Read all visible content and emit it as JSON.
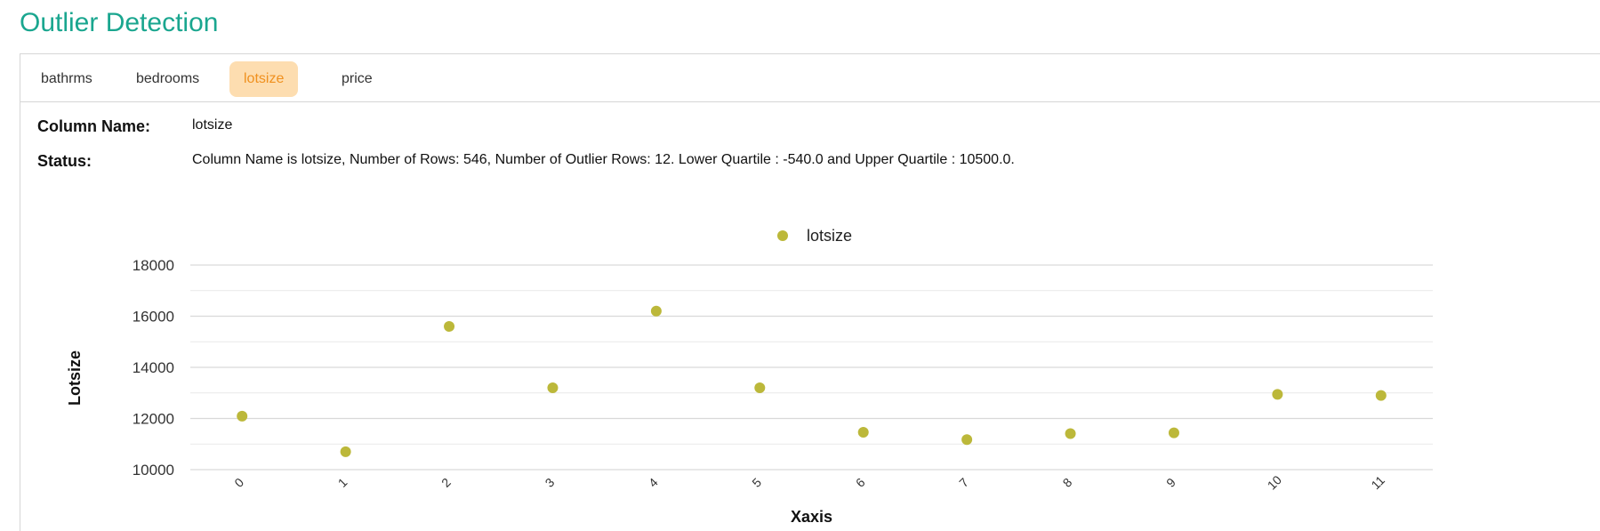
{
  "header": {
    "title": "Outlier Detection"
  },
  "tabs": [
    {
      "label": "bathrms",
      "active": false
    },
    {
      "label": "bedrooms",
      "active": false
    },
    {
      "label": "lotsize",
      "active": true
    },
    {
      "label": "price",
      "active": false
    }
  ],
  "info": {
    "column_name_label": "Column Name:",
    "column_name_value": "lotsize",
    "status_label": "Status:",
    "status_value": "Column Name is lotsize, Number of Rows: 546, Number of Outlier Rows: 12. Lower Quartile : -540.0 and Upper Quartile : 10500.0."
  },
  "colors": {
    "accent": "#1aa68f",
    "active_tab_bg": "#fdddb0",
    "active_tab_text": "#f0901e",
    "point": "#bcb83a",
    "grid": "#d9d9d9"
  },
  "chart_data": {
    "type": "scatter",
    "legend": "lotsize",
    "legend_position": "top-center",
    "xlabel": "Xaxis",
    "ylabel": "Lotsize",
    "x": [
      0,
      1,
      2,
      3,
      4,
      5,
      6,
      7,
      8,
      9,
      10,
      11
    ],
    "x_tick_labels": [
      "0",
      "1",
      "2",
      "3",
      "4",
      "5",
      "6",
      "7",
      "8",
      "9",
      "10",
      "11"
    ],
    "y": [
      12090,
      10700,
      15600,
      13200,
      16200,
      13200,
      11460,
      11175,
      11410,
      11440,
      12944,
      12900
    ],
    "ylim": [
      10000,
      18000
    ],
    "y_ticks": [
      10000,
      12000,
      14000,
      16000,
      18000
    ],
    "y_tick_labels": [
      "10000",
      "12000",
      "14000",
      "16000",
      "18000"
    ],
    "grid": true
  }
}
